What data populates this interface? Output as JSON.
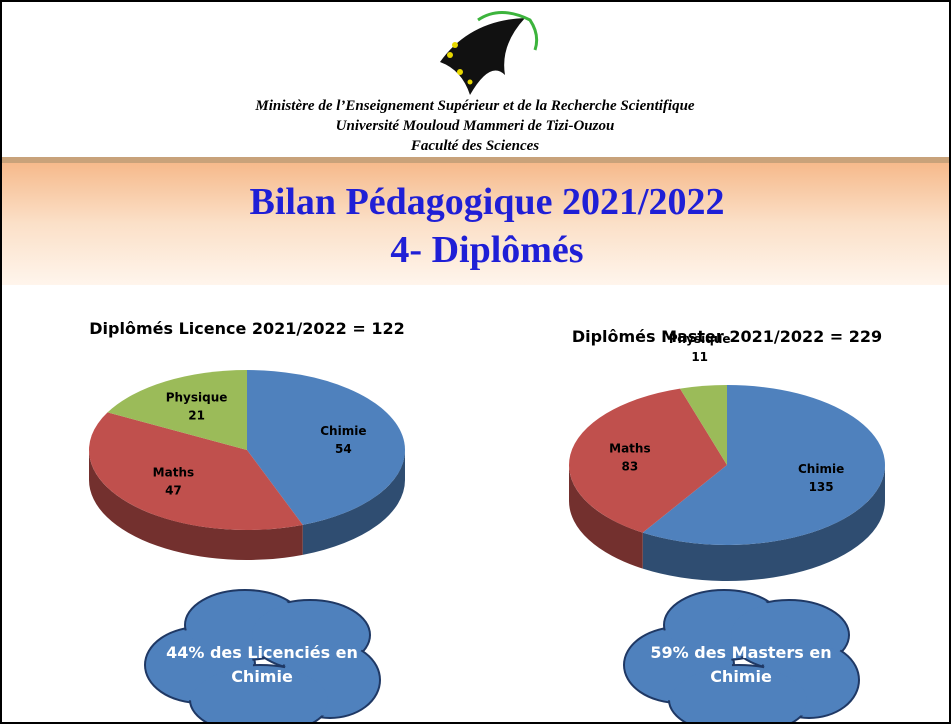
{
  "header": {
    "lines": [
      "Ministère de l’Enseignement Supérieur et de la Recherche Scientifique",
      "Université Mouloud Mammeri de Tizi-Ouzou",
      "Faculté des Sciences"
    ]
  },
  "title": {
    "lines": [
      "Bilan Pédagogique 2021/2022",
      "4- Diplômés"
    ]
  },
  "chart_data": [
    {
      "type": "pie",
      "title": "Diplômés Licence 2021/2022 = 122",
      "categories": [
        "Chimie",
        "Maths",
        "Physique"
      ],
      "values": [
        54,
        47,
        21
      ],
      "colors": [
        "#4f81bd",
        "#c0504d",
        "#9bbb59"
      ]
    },
    {
      "type": "pie",
      "title": "Diplômés Master 2021/2022 = 229",
      "categories": [
        "Chimie",
        "Maths",
        "Physique"
      ],
      "values": [
        135,
        83,
        11
      ],
      "colors": [
        "#4f81bd",
        "#c0504d",
        "#9bbb59"
      ]
    }
  ],
  "callouts": [
    [
      "44% des Licenciés en",
      "Chimie"
    ],
    [
      "59% des Masters en",
      "Chimie"
    ]
  ]
}
